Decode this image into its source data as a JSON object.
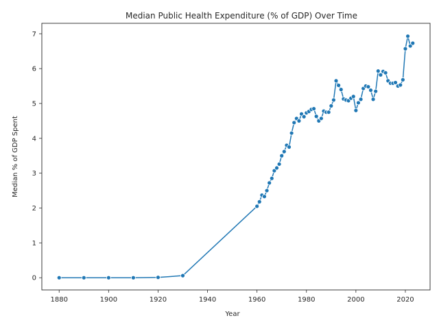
{
  "chart_data": {
    "type": "line",
    "title": "Median Public Health Expenditure (% of GDP) Over Time",
    "xlabel": "Year",
    "ylabel": "Median % of GDP Spent",
    "xlim": [
      1873,
      2030
    ],
    "ylim": [
      -0.35,
      7.3
    ],
    "xticks": [
      1880,
      1900,
      1920,
      1940,
      1960,
      1980,
      2000,
      2020
    ],
    "yticks": [
      0,
      1,
      2,
      3,
      4,
      5,
      6,
      7
    ],
    "grid": false,
    "legend": "none",
    "color": "#1f77b4",
    "marker": "circle",
    "series": [
      {
        "x": [
          1880,
          1890,
          1900,
          1910,
          1920,
          1930,
          1960,
          1961,
          1962,
          1963,
          1964,
          1965,
          1966,
          1967,
          1968,
          1969,
          1970,
          1971,
          1972,
          1973,
          1974,
          1975,
          1976,
          1977,
          1978,
          1979,
          1980,
          1981,
          1982,
          1983,
          1984,
          1985,
          1986,
          1987,
          1988,
          1989,
          1990,
          1991,
          1992,
          1993,
          1994,
          1995,
          1996,
          1997,
          1998,
          1999,
          2000,
          2001,
          2002,
          2003,
          2004,
          2005,
          2006,
          2007,
          2008,
          2009,
          2010,
          2011,
          2012,
          2013,
          2014,
          2015,
          2016,
          2017,
          2018,
          2019,
          2020,
          2021,
          2022,
          2023
        ],
        "y": [
          0.0,
          0.0,
          0.0,
          0.0,
          0.01,
          0.06,
          2.05,
          2.18,
          2.37,
          2.33,
          2.5,
          2.72,
          2.85,
          3.07,
          3.15,
          3.26,
          3.5,
          3.62,
          3.8,
          3.75,
          4.15,
          4.45,
          4.57,
          4.5,
          4.7,
          4.62,
          4.73,
          4.77,
          4.83,
          4.85,
          4.63,
          4.5,
          4.57,
          4.78,
          4.75,
          4.75,
          4.93,
          5.1,
          5.65,
          5.52,
          5.4,
          5.13,
          5.1,
          5.08,
          5.15,
          5.2,
          4.8,
          5.02,
          5.12,
          5.43,
          5.5,
          5.48,
          5.38,
          5.12,
          5.35,
          5.93,
          5.82,
          5.92,
          5.88,
          5.65,
          5.58,
          5.58,
          5.6,
          5.5,
          5.53,
          5.68,
          6.57,
          6.93,
          6.65,
          6.73
        ]
      }
    ]
  }
}
